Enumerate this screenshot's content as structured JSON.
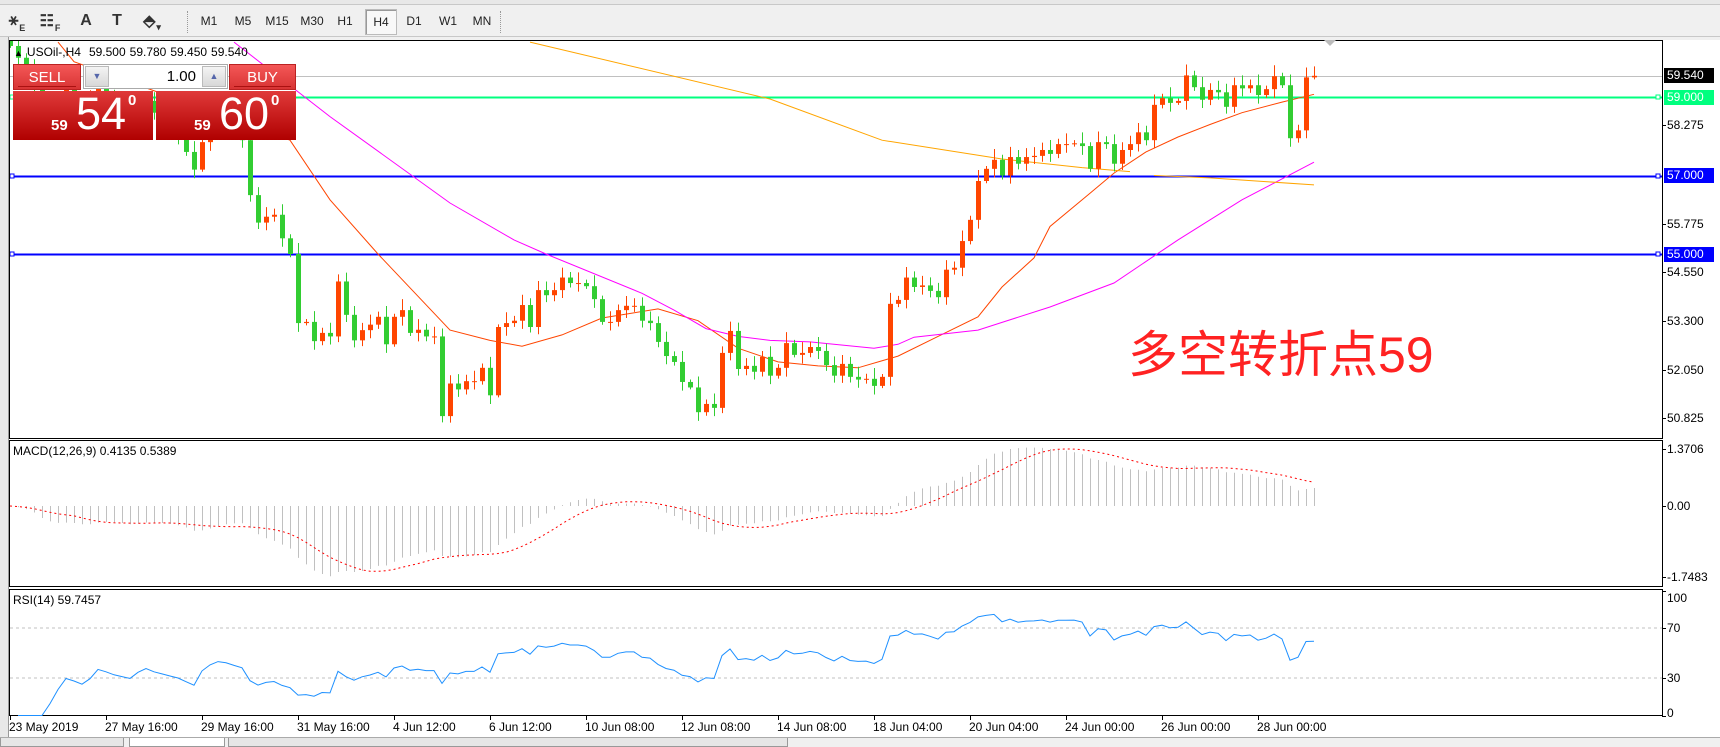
{
  "toolbar": {
    "tools": [
      {
        "name": "elliott-wave-icon",
        "glyph": "⚹",
        "sub": "E"
      },
      {
        "name": "fibo-grid-icon",
        "glyph": "☷",
        "sub": "F"
      },
      {
        "name": "text-icon",
        "glyph": "A",
        "sub": ""
      },
      {
        "name": "text-label-icon",
        "glyph": "T",
        "sub": ""
      },
      {
        "name": "arrows-icon",
        "glyph": "⬘",
        "sub": "▾"
      }
    ],
    "timeframes": [
      "M1",
      "M5",
      "M15",
      "M30",
      "H1",
      "H4",
      "D1",
      "W1",
      "MN"
    ],
    "active_timeframe": "H4"
  },
  "chart": {
    "header": {
      "arrow": "▲",
      "symbol": "USOil-,H4",
      "open": "59.500",
      "high": "59.780",
      "low": "59.450",
      "close": "59.540"
    },
    "trade_panel": {
      "sell_label": "SELL",
      "buy_label": "BUY",
      "lot": "1.00",
      "sell_price": {
        "prefix": "59",
        "big": "54",
        "sup": "0"
      },
      "buy_price": {
        "prefix": "59",
        "big": "60",
        "sup": "0"
      }
    },
    "price_axis": [
      "58.275",
      "55.775",
      "54.550",
      "53.300",
      "52.050",
      "50.825"
    ],
    "price_tags": [
      {
        "label": "59.540",
        "value": 59.54,
        "bg": "#000000"
      },
      {
        "label": "59.000",
        "value": 59.0,
        "bg": "#00FF7F"
      },
      {
        "label": "57.000",
        "value": 57.0,
        "bg": "#0000FF"
      },
      {
        "label": "55.000",
        "value": 55.0,
        "bg": "#0000FF"
      }
    ],
    "horizontal_lines": [
      {
        "value": 59.54,
        "color": "#C0C0C0",
        "kind": "bid"
      },
      {
        "value": 59.0,
        "color": "#00FF7F",
        "kind": "level"
      },
      {
        "value": 57.0,
        "color": "#0000FF",
        "kind": "level"
      },
      {
        "value": 55.0,
        "color": "#0000FF",
        "kind": "level"
      }
    ],
    "annotation": "多空转折点59",
    "annotation_color": "#FF2222",
    "macd": {
      "label": "MACD(12,26,9) 0.4135 0.5389",
      "axis": [
        "1.3706",
        "0.00",
        "-1.7483"
      ]
    },
    "rsi": {
      "label": "RSI(14) 59.7457",
      "axis": [
        "100",
        "70",
        "30",
        "0"
      ],
      "levels": [
        70,
        30
      ]
    },
    "time_axis": [
      "23 May 2019",
      "27 May 16:00",
      "29 May 16:00",
      "31 May 16:00",
      "4 Jun 12:00",
      "6 Jun 12:00",
      "10 Jun 08:00",
      "12 Jun 08:00",
      "14 Jun 08:00",
      "18 Jun 04:00",
      "20 Jun 04:00",
      "24 Jun 00:00",
      "26 Jun 00:00",
      "28 Jun 00:00"
    ]
  },
  "chart_data": {
    "type": "candlestick",
    "symbol": "USOil-",
    "timeframe": "H4",
    "ylim": [
      50.4,
      60.4
    ],
    "bars_per_time_label": 12,
    "colors": {
      "bull": "#FF4500",
      "bear": "#32CD32",
      "macd_hist": "#C0C0C0",
      "macd_signal": "#FF0000",
      "rsi": "#1E90FF"
    },
    "closes": [
      60.3,
      60.0,
      59.7,
      59.2,
      58.4,
      58.6,
      58.9,
      59.2,
      59.0,
      58.7,
      58.9,
      59.3,
      59.1,
      58.8,
      58.6,
      58.4,
      58.7,
      58.9,
      58.6,
      58.4,
      58.2,
      58.0,
      57.6,
      57.15,
      57.85,
      58.2,
      58.4,
      58.3,
      58.1,
      57.9,
      56.5,
      55.8,
      55.95,
      56.0,
      55.4,
      55.0,
      53.24,
      53.27,
      52.78,
      52.99,
      52.9,
      54.3,
      53.45,
      52.8,
      53.06,
      53.2,
      53.4,
      52.7,
      53.4,
      53.57,
      52.99,
      53.07,
      52.9,
      52.9,
      50.87,
      51.7,
      51.55,
      51.76,
      51.76,
      52.1,
      51.4,
      53.14,
      53.24,
      53.3,
      53.7,
      53.14,
      54.08,
      53.95,
      54.08,
      54.4,
      54.26,
      54.26,
      54.18,
      53.85,
      53.27,
      53.27,
      53.57,
      53.68,
      53.68,
      53.3,
      53.24,
      52.76,
      52.4,
      52.25,
      51.74,
      51.6,
      50.97,
      51.18,
      51.08,
      52.48,
      53.04,
      52.07,
      52.15,
      52.0,
      52.38,
      51.9,
      52.1,
      52.73,
      52.43,
      52.48,
      52.63,
      52.53,
      52.17,
      51.9,
      52.2,
      51.87,
      51.8,
      51.82,
      51.64,
      51.87,
      53.73,
      53.83,
      54.4,
      54.16,
      54.2,
      54.06,
      53.9,
      54.6,
      54.65,
      55.33,
      55.87,
      56.86,
      57.17,
      57.4,
      57.0,
      57.47,
      57.3,
      57.47,
      57.5,
      57.65,
      57.55,
      57.8,
      57.8,
      57.82,
      57.75,
      57.17,
      57.85,
      57.8,
      57.3,
      57.65,
      57.8,
      58.1,
      57.9,
      58.8,
      58.97,
      58.85,
      58.9,
      59.55,
      59.25,
      58.93,
      59.18,
      59.12,
      58.75,
      59.3,
      59.22,
      59.3,
      59.05,
      59.2,
      59.53,
      59.3,
      57.95,
      58.15,
      59.5,
      59.54
    ],
    "moving_averages": [
      {
        "color": "#FF4500",
        "points": [
          [
            6,
            60.4
          ],
          [
            8,
            59.9
          ],
          [
            35,
            57.9
          ],
          [
            40,
            56.38
          ],
          [
            46,
            55.0
          ],
          [
            55,
            53.06
          ],
          [
            60,
            52.8
          ],
          [
            64,
            52.65
          ],
          [
            69,
            52.94
          ],
          [
            74,
            53.37
          ],
          [
            81,
            53.6
          ],
          [
            86,
            53.3
          ],
          [
            91,
            52.6
          ],
          [
            96,
            52.25
          ],
          [
            101,
            52.15
          ],
          [
            106,
            52.1
          ],
          [
            111,
            52.4
          ],
          [
            116,
            52.9
          ],
          [
            121,
            53.4
          ],
          [
            124,
            54.16
          ],
          [
            128,
            54.9
          ],
          [
            130,
            55.7
          ],
          [
            135,
            56.55
          ],
          [
            138,
            57.06
          ],
          [
            142,
            57.6
          ],
          [
            146,
            57.98
          ],
          [
            150,
            58.3
          ],
          [
            154,
            58.6
          ],
          [
            159,
            58.87
          ],
          [
            163,
            59.07
          ]
        ]
      },
      {
        "color": "#FF00FF",
        "points": [
          [
            28,
            60.4
          ],
          [
            40,
            58.5
          ],
          [
            55,
            56.3
          ],
          [
            63,
            55.36
          ],
          [
            67,
            55.0
          ],
          [
            79,
            54.0
          ],
          [
            83,
            53.57
          ],
          [
            87,
            53.1
          ],
          [
            91,
            52.9
          ],
          [
            95,
            52.8
          ],
          [
            100,
            52.76
          ],
          [
            108,
            52.6
          ],
          [
            111,
            52.7
          ],
          [
            113,
            52.88
          ],
          [
            121,
            53.06
          ],
          [
            130,
            53.65
          ],
          [
            138,
            54.26
          ],
          [
            146,
            55.36
          ],
          [
            154,
            56.38
          ],
          [
            163,
            57.34
          ]
        ]
      },
      {
        "color": "#FFA500",
        "points": [
          [
            65,
            60.4
          ],
          [
            95,
            58.95
          ],
          [
            109,
            57.9
          ],
          [
            124,
            57.42
          ],
          [
            134,
            57.2
          ],
          [
            140,
            57.1
          ],
          null,
          [
            143,
            57.0
          ],
          [
            150,
            56.94
          ],
          [
            163,
            56.76
          ]
        ]
      }
    ]
  }
}
